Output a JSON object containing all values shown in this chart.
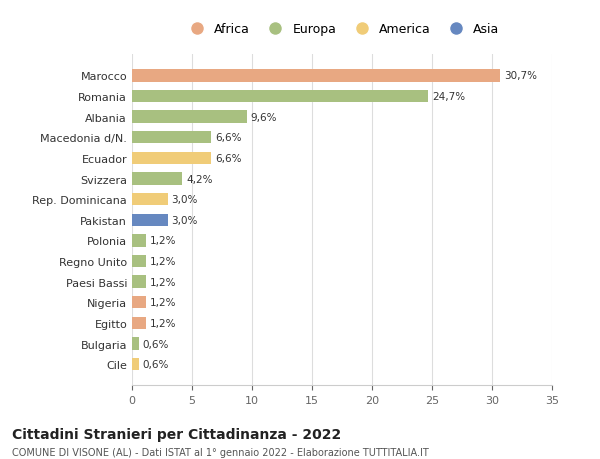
{
  "categories": [
    "Marocco",
    "Romania",
    "Albania",
    "Macedonia d/N.",
    "Ecuador",
    "Svizzera",
    "Rep. Dominicana",
    "Pakistan",
    "Polonia",
    "Regno Unito",
    "Paesi Bassi",
    "Nigeria",
    "Egitto",
    "Bulgaria",
    "Cile"
  ],
  "values": [
    30.7,
    24.7,
    9.6,
    6.6,
    6.6,
    4.2,
    3.0,
    3.0,
    1.2,
    1.2,
    1.2,
    1.2,
    1.2,
    0.6,
    0.6
  ],
  "labels": [
    "30,7%",
    "24,7%",
    "9,6%",
    "6,6%",
    "6,6%",
    "4,2%",
    "3,0%",
    "3,0%",
    "1,2%",
    "1,2%",
    "1,2%",
    "1,2%",
    "1,2%",
    "0,6%",
    "0,6%"
  ],
  "colors": [
    "#E8A882",
    "#A8C080",
    "#A8C080",
    "#A8C080",
    "#F0CC78",
    "#A8C080",
    "#F0CC78",
    "#6688C0",
    "#A8C080",
    "#A8C080",
    "#A8C080",
    "#E8A882",
    "#E8A882",
    "#A8C080",
    "#F0CC78"
  ],
  "continent_colors": {
    "Africa": "#E8A882",
    "Europa": "#A8C080",
    "America": "#F0CC78",
    "Asia": "#6688C0"
  },
  "legend_labels": [
    "Africa",
    "Europa",
    "America",
    "Asia"
  ],
  "title": "Cittadini Stranieri per Cittadinanza - 2022",
  "subtitle": "COMUNE DI VISONE (AL) - Dati ISTAT al 1° gennaio 2022 - Elaborazione TUTTITALIA.IT",
  "xlim": [
    0,
    35
  ],
  "xticks": [
    0,
    5,
    10,
    15,
    20,
    25,
    30,
    35
  ],
  "background_color": "#ffffff",
  "grid_color": "#dddddd"
}
